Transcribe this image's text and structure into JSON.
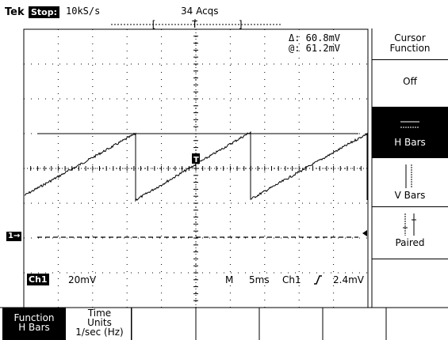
{
  "header": {
    "brand": "Tek",
    "state": "Stop:",
    "sample_rate": "10kS/s",
    "acquisitions": "34 Acqs"
  },
  "cursor_readout": {
    "delta": "Δ: 60.8mV",
    "at": "@: 61.2mV"
  },
  "channel_status": {
    "channel_badge": "Ch1",
    "volts_per_div": "20mV",
    "mode": "M",
    "time_per_div": "5ms",
    "trigger_source": "Ch1",
    "trigger_slope_icon": "rising-edge-icon",
    "trigger_level": "2.4mV"
  },
  "channel_marker": "1",
  "side_menu": {
    "title_line1": "Cursor",
    "title_line2": "Function",
    "items": [
      {
        "label": "Off",
        "selected": false
      },
      {
        "label": "H Bars",
        "selected": true
      },
      {
        "label": "V Bars",
        "selected": false
      },
      {
        "label": "Paired",
        "selected": false
      }
    ]
  },
  "bottom_menu": {
    "function_line1": "Function",
    "function_line2": "H Bars",
    "time_line1": "Time",
    "time_line2": "Units",
    "time_line3": "1/sec (Hz)"
  },
  "colors": {
    "background": "#ffffff",
    "foreground": "#000000"
  }
}
